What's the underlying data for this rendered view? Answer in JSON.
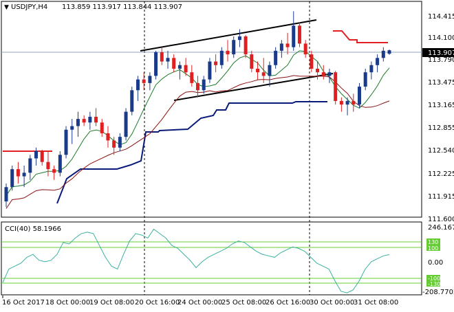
{
  "header": {
    "symbol": "USDJPY,H4",
    "ohlc": "113.859 113.917 113.844 113.907"
  },
  "price_axis": {
    "labels": [
      "114.415",
      "114.100",
      "113.790",
      "113.475",
      "113.165",
      "112.855",
      "112.540",
      "112.225",
      "111.915",
      "111.600"
    ],
    "current_price": "113.907"
  },
  "indicator": {
    "title": "CCI(40) 58.1966",
    "axis_labels": [
      "246.1671",
      "130",
      "100",
      "0.00",
      "-100",
      "-130",
      "-208.7702"
    ]
  },
  "time_axis": {
    "labels": [
      "16 Oct 2017",
      "18 Oct 00:00",
      "19 Oct 08:00",
      "20 Oct 16:00",
      "24 Oct 00:00",
      "25 Oct 08:00",
      "26 Oct 16:00",
      "30 Oct 00:00",
      "31 Oct 08:00"
    ]
  },
  "colors": {
    "bull": "#1a3a8a",
    "bear": "#e02020",
    "ma_fast": "#1a7a2a",
    "ma_slow": "#8b1010",
    "support": "#0a1a7a",
    "resistance": "#e02020",
    "cci": "#3ab0a0",
    "cci_levels": "#66cc33"
  },
  "chart_data": {
    "type": "candlestick",
    "ylim": [
      111.6,
      114.55
    ],
    "candles": [
      [
        111.8,
        112.05,
        111.72,
        112.0
      ],
      [
        112.0,
        112.3,
        111.95,
        112.25
      ],
      [
        112.25,
        112.35,
        112.05,
        112.15
      ],
      [
        112.15,
        112.3,
        112.0,
        112.2
      ],
      [
        112.2,
        112.45,
        112.1,
        112.4
      ],
      [
        112.4,
        112.55,
        112.3,
        112.5
      ],
      [
        112.5,
        112.52,
        112.3,
        112.35
      ],
      [
        112.35,
        112.5,
        112.15,
        112.25
      ],
      [
        112.25,
        112.3,
        112.1,
        112.2
      ],
      [
        112.2,
        112.5,
        112.15,
        112.45
      ],
      [
        112.45,
        112.85,
        112.4,
        112.8
      ],
      [
        112.8,
        112.95,
        112.6,
        112.85
      ],
      [
        112.85,
        113.05,
        112.7,
        112.95
      ],
      [
        112.95,
        113.0,
        112.85,
        112.9
      ],
      [
        112.9,
        113.05,
        112.8,
        112.98
      ],
      [
        112.98,
        113.1,
        112.85,
        112.9
      ],
      [
        112.9,
        112.95,
        112.7,
        112.75
      ],
      [
        112.75,
        112.85,
        112.55,
        112.65
      ],
      [
        112.65,
        112.7,
        112.45,
        112.55
      ],
      [
        112.55,
        112.75,
        112.5,
        112.7
      ],
      [
        112.7,
        113.1,
        112.65,
        113.05
      ],
      [
        113.05,
        113.4,
        113.0,
        113.35
      ],
      [
        113.35,
        113.55,
        113.2,
        113.5
      ],
      [
        113.5,
        113.6,
        113.35,
        113.45
      ],
      [
        113.45,
        113.6,
        113.35,
        113.55
      ],
      [
        113.55,
        113.9,
        113.5,
        113.88
      ],
      [
        113.88,
        113.95,
        113.7,
        113.75
      ],
      [
        113.75,
        113.9,
        113.65,
        113.8
      ],
      [
        113.8,
        113.85,
        113.6,
        113.65
      ],
      [
        113.65,
        113.75,
        113.5,
        113.7
      ],
      [
        113.7,
        113.8,
        113.55,
        113.6
      ],
      [
        113.6,
        113.7,
        113.4,
        113.45
      ],
      [
        113.45,
        113.55,
        113.25,
        113.35
      ],
      [
        113.35,
        113.55,
        113.3,
        113.5
      ],
      [
        113.5,
        113.8,
        113.45,
        113.75
      ],
      [
        113.75,
        113.85,
        113.6,
        113.7
      ],
      [
        113.7,
        113.95,
        113.65,
        113.9
      ],
      [
        113.9,
        114.05,
        113.75,
        113.85
      ],
      [
        113.85,
        114.1,
        113.8,
        114.05
      ],
      [
        114.05,
        114.2,
        113.95,
        114.1
      ],
      [
        114.1,
        114.12,
        113.8,
        113.85
      ],
      [
        113.85,
        113.9,
        113.6,
        113.65
      ],
      [
        113.65,
        113.75,
        113.5,
        113.6
      ],
      [
        113.6,
        113.8,
        113.45,
        113.55
      ],
      [
        113.55,
        113.75,
        113.4,
        113.7
      ],
      [
        113.7,
        113.95,
        113.65,
        113.9
      ],
      [
        113.9,
        114.05,
        113.8,
        114.0
      ],
      [
        114.0,
        114.15,
        113.85,
        113.95
      ],
      [
        113.95,
        114.45,
        113.9,
        114.25
      ],
      [
        114.25,
        114.3,
        113.95,
        114.0
      ],
      [
        114.0,
        114.05,
        113.8,
        113.85
      ],
      [
        113.85,
        113.9,
        113.6,
        113.65
      ],
      [
        113.65,
        113.75,
        113.5,
        113.6
      ],
      [
        113.6,
        113.7,
        113.5,
        113.55
      ],
      [
        113.55,
        113.65,
        113.45,
        113.6
      ],
      [
        113.6,
        113.62,
        113.15,
        113.2
      ],
      [
        113.2,
        113.25,
        113.05,
        113.15
      ],
      [
        113.15,
        113.25,
        113.0,
        113.2
      ],
      [
        113.2,
        113.3,
        113.05,
        113.15
      ],
      [
        113.15,
        113.45,
        113.1,
        113.4
      ],
      [
        113.4,
        113.65,
        113.35,
        113.6
      ],
      [
        113.6,
        113.75,
        113.5,
        113.7
      ],
      [
        113.7,
        113.85,
        113.6,
        113.8
      ],
      [
        113.8,
        113.95,
        113.75,
        113.9
      ],
      [
        113.859,
        113.917,
        113.844,
        113.907
      ]
    ],
    "cci": [
      -130,
      -40,
      -20,
      0,
      40,
      60,
      20,
      10,
      20,
      60,
      140,
      130,
      170,
      200,
      210,
      200,
      120,
      40,
      -20,
      -40,
      60,
      150,
      200,
      190,
      170,
      230,
      200,
      170,
      120,
      100,
      60,
      20,
      -30,
      10,
      40,
      60,
      80,
      100,
      130,
      150,
      140,
      110,
      80,
      60,
      50,
      40,
      70,
      90,
      110,
      100,
      80,
      40,
      0,
      -20,
      -40,
      -120,
      -190,
      -200,
      -180,
      -120,
      -40,
      10,
      30,
      50,
      58.1966
    ]
  }
}
